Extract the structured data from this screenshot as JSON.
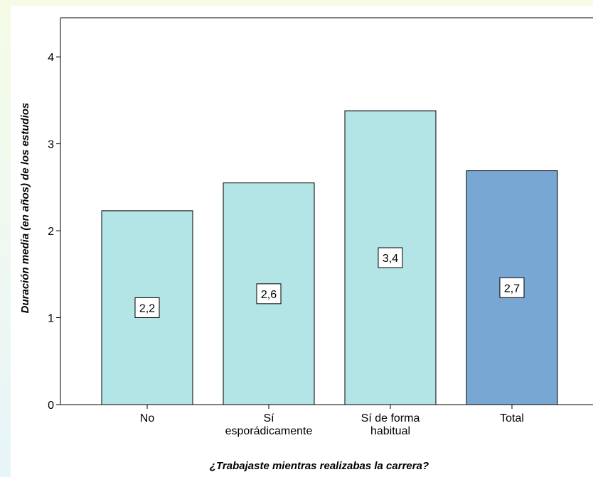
{
  "chart_data": {
    "type": "bar",
    "categories": [
      "No",
      "Sí\nesporádicamente",
      "Sí de forma\nhabitual",
      "Total"
    ],
    "values": [
      2.23,
      2.55,
      3.38,
      2.69
    ],
    "data_labels": [
      "2,2",
      "2,6",
      "3,4",
      "2,7"
    ],
    "bar_colors": [
      "#b3e5e6",
      "#b3e5e6",
      "#b3e5e6",
      "#79a7d3"
    ],
    "ylim": [
      0,
      4.45
    ],
    "yticks": [
      0,
      1,
      2,
      3,
      4
    ],
    "ytick_labels": [
      "0",
      "1",
      "2",
      "3",
      "4"
    ],
    "xlabel": "¿Trabajaste mientras realizabas la carrera?",
    "ylabel": "Duración media (en años) de los estudios",
    "grid": false,
    "legend": "none"
  }
}
